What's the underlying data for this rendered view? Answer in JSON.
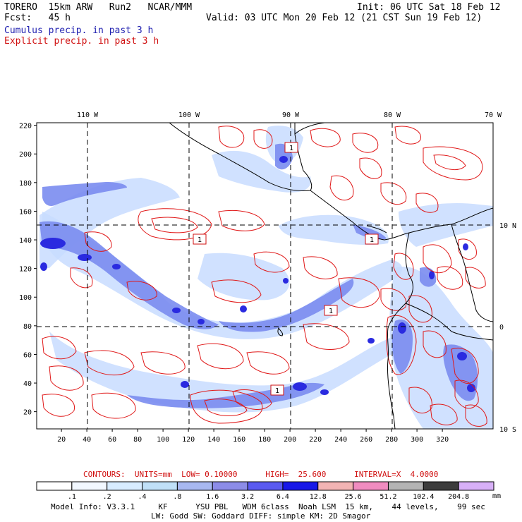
{
  "header": {
    "model": "TORERO  15km ARW   Run2   NCAR/MMM",
    "fcst": "Fcst:   45 h",
    "init": "Init: 06 UTC Sat 18 Feb 12",
    "valid": "Valid: 03 UTC Mon 20 Feb 12 (21 CST Sun 19 Feb 12)",
    "legend_cumulus": "Cumulus precip. in past 3 h",
    "legend_explicit": "Explicit precip. in past 3 h"
  },
  "map": {
    "lon_labels": [
      "110 W",
      "100 W",
      "90 W",
      "80 W",
      "70 W"
    ],
    "lat_labels_right": [
      "10 N",
      "0",
      "10 S"
    ],
    "y_ticks": [
      "220",
      "200",
      "180",
      "160",
      "140",
      "120",
      "100",
      "80",
      "60",
      "40",
      "20"
    ],
    "x_ticks": [
      "20",
      "40",
      "60",
      "80",
      "100",
      "120",
      "140",
      "160",
      "180",
      "200",
      "220",
      "240",
      "260",
      "280",
      "300",
      "320"
    ],
    "box_labels": [
      "1",
      "1",
      "1",
      "1",
      "1"
    ],
    "colors": {
      "cumulus_light": "#c8dcff",
      "cumulus_mid": "#7a8cf0",
      "cumulus_dark": "#2a2ae0",
      "explicit": "#e01818",
      "coast": "#000000",
      "grid": "#000000"
    }
  },
  "contours_text": "CONTOURS:  UNITS=mm  LOW= 0.10000      HIGH=  25.600      INTERVAL=X  4.0000",
  "colorbar": {
    "labels": [
      ".1",
      ".2",
      ".4",
      ".8",
      "1.6",
      "3.2",
      "6.4",
      "12.8",
      "25.6",
      "51.2",
      "102.4",
      "204.8"
    ],
    "unit": "mm",
    "colors": [
      "#ffffff",
      "#f2f8ff",
      "#d8ecff",
      "#c0e0f8",
      "#a8b8f0",
      "#8c8ce8",
      "#5a5af0",
      "#1818e8",
      "#f2b4b4",
      "#f08cc0",
      "#b4b4b4",
      "#3c3c3c",
      "#d8b0f8"
    ]
  },
  "footer": {
    "line1": "Model Info: V3.3.1     KF      YSU PBL   WDM 6class  Noah LSM  15 km,    44 levels,    99 sec",
    "line2": "LW: Godd SW: Goddard DIFF: simple KM: 2D Smagor"
  }
}
